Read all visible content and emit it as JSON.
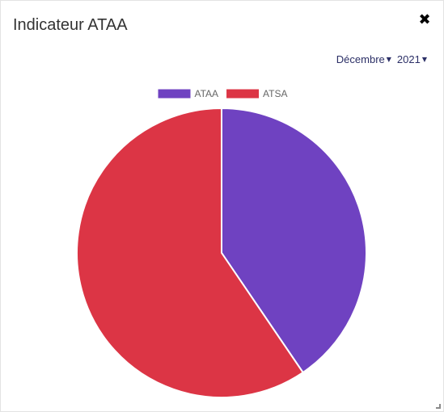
{
  "modal": {
    "title": "Indicateur ATAA",
    "close_icon": "close-icon"
  },
  "filters": {
    "month": {
      "selected": "Décembre",
      "icon": "chevron-down-icon"
    },
    "year": {
      "selected": "2021",
      "icon": "chevron-down-icon"
    }
  },
  "chart_data": {
    "type": "pie",
    "title": "",
    "legend_position": "top",
    "categories": [
      "ATAA",
      "ATSA"
    ],
    "values": [
      40.5,
      59.5
    ],
    "colors": [
      "#6f42c1",
      "#dc3545"
    ]
  }
}
